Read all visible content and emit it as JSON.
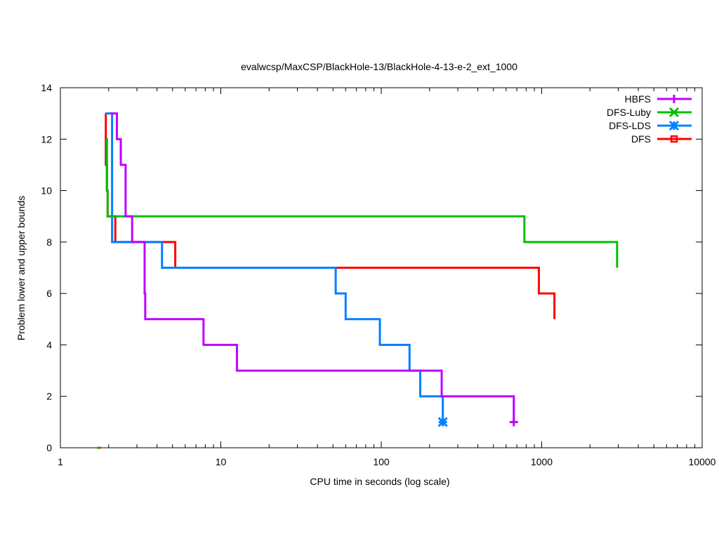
{
  "chart_data": {
    "type": "line",
    "title": "evalwcsp/MaxCSP/BlackHole-13/BlackHole-4-13-e-2_ext_1000",
    "xlabel": "CPU time in seconds (log scale)",
    "ylabel": "Problem lower and upper bounds",
    "xscale": "log",
    "xlim": [
      1,
      10000
    ],
    "ylim": [
      0,
      14
    ],
    "xticks": [
      1,
      10,
      100,
      1000,
      10000
    ],
    "xtick_labels": [
      "1",
      "10",
      "100",
      "1000",
      "10000"
    ],
    "yticks": [
      0,
      2,
      4,
      6,
      8,
      10,
      12,
      14
    ],
    "ytick_labels": [
      "0",
      "2",
      "4",
      "6",
      "8",
      "10",
      "12",
      "14"
    ],
    "legend_position": "top-right",
    "grid": false,
    "series": [
      {
        "name": "HBFS",
        "color": "#c000ff",
        "marker": "plus",
        "steps": [
          [
            2.05,
            13
          ],
          [
            2.25,
            12
          ],
          [
            2.38,
            11
          ],
          [
            2.55,
            9
          ],
          [
            2.8,
            8
          ],
          [
            3.35,
            6
          ],
          [
            3.38,
            5
          ],
          [
            7.8,
            4
          ],
          [
            12.6,
            3
          ],
          [
            238,
            2
          ],
          [
            670,
            1
          ]
        ],
        "end_marker": [
          670,
          1
        ]
      },
      {
        "name": "DFS-Luby",
        "color": "#00c000",
        "marker": "x",
        "steps": [
          [
            1.93,
            12
          ],
          [
            1.95,
            10
          ],
          [
            1.97,
            9
          ],
          [
            780,
            8
          ],
          [
            2950,
            7
          ]
        ],
        "end_marker": null
      },
      {
        "name": "DFS-LDS",
        "color": "#0080ff",
        "marker": "star",
        "steps": [
          [
            1.9,
            13
          ],
          [
            2.1,
            8
          ],
          [
            4.3,
            7
          ],
          [
            52,
            6
          ],
          [
            60,
            5
          ],
          [
            98,
            4
          ],
          [
            150,
            3
          ],
          [
            175,
            2
          ],
          [
            242,
            1
          ]
        ],
        "end_marker": [
          242,
          1
        ]
      },
      {
        "name": "DFS",
        "color": "#ff0000",
        "marker": "square",
        "steps": [
          [
            1.92,
            13
          ],
          [
            1.92,
            11
          ],
          [
            1.95,
            10
          ],
          [
            1.97,
            9
          ],
          [
            2.2,
            8
          ],
          [
            5.2,
            7
          ],
          [
            960,
            6
          ],
          [
            1200,
            5
          ]
        ],
        "end_marker": null
      }
    ],
    "extra_points": [
      {
        "series": "DFS",
        "x": 1.75,
        "y": 0
      },
      {
        "series": "DFS-Luby",
        "x": 1.72,
        "y": 0
      }
    ]
  }
}
